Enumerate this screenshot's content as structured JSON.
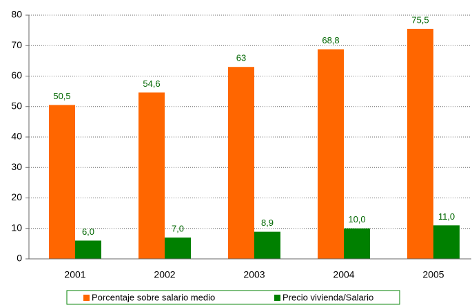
{
  "chart_data": {
    "type": "bar",
    "categories": [
      "2001",
      "2002",
      "2003",
      "2004",
      "2005"
    ],
    "series": [
      {
        "name": "Porcentaje sobre salario medio",
        "color": "#ff6600",
        "values": [
          50.5,
          54.6,
          63,
          68.8,
          75.5
        ],
        "value_labels": [
          "50,5",
          "54,6",
          "63",
          "68,8",
          "75,5"
        ]
      },
      {
        "name": "Precio vivienda/Salario",
        "color": "#008000",
        "values": [
          6.0,
          7.0,
          8.9,
          10.0,
          11.0
        ],
        "value_labels": [
          "6,0",
          "7,0",
          "8,9",
          "10,0",
          "11,0"
        ]
      }
    ],
    "ylim": [
      0,
      80
    ],
    "yticks": [
      0,
      10,
      20,
      30,
      40,
      50,
      60,
      70,
      80
    ],
    "grid": true,
    "legend": "bottom"
  }
}
